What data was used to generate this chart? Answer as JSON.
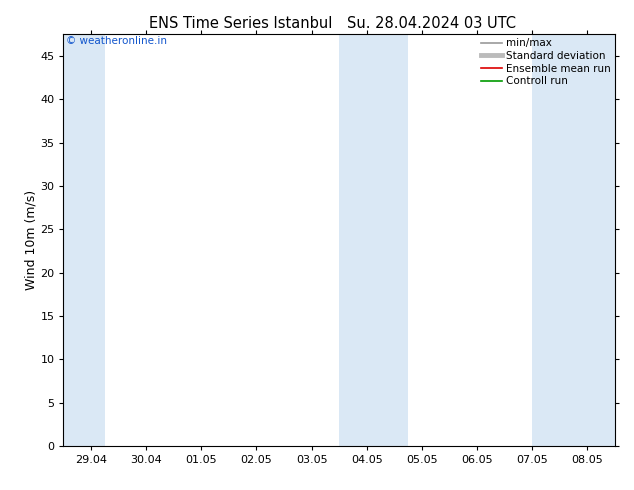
{
  "title_left": "ENS Time Series Istanbul",
  "title_right": "Su. 28.04.2024 03 UTC",
  "ylabel": "Wind 10m (m/s)",
  "ylim": [
    0,
    47.5
  ],
  "yticks": [
    0,
    5,
    10,
    15,
    20,
    25,
    30,
    35,
    40,
    45
  ],
  "x_tick_labels": [
    "29.04",
    "30.04",
    "01.05",
    "02.05",
    "03.05",
    "04.05",
    "05.05",
    "06.05",
    "07.05",
    "08.05"
  ],
  "x_tick_positions": [
    0.5,
    1.5,
    2.5,
    3.5,
    4.5,
    5.5,
    6.5,
    7.5,
    8.5,
    9.5
  ],
  "xlim": [
    0,
    10
  ],
  "shade_bands": [
    {
      "x_start": 0.0,
      "x_end": 0.75
    },
    {
      "x_start": 5.0,
      "x_end": 6.25
    },
    {
      "x_start": 8.5,
      "x_end": 10.0
    }
  ],
  "shade_color": "#dae8f5",
  "bg_color": "#ffffff",
  "legend_items": [
    {
      "label": "min/max",
      "color": "#999999",
      "lw": 1.2
    },
    {
      "label": "Standard deviation",
      "color": "#bbbbbb",
      "lw": 3.5
    },
    {
      "label": "Ensemble mean run",
      "color": "#dd0000",
      "lw": 1.2
    },
    {
      "label": "Controll run",
      "color": "#009900",
      "lw": 1.2
    }
  ],
  "watermark": "© weatheronline.in",
  "watermark_color": "#1155cc",
  "font_size_title": 10.5,
  "font_size_tick": 8,
  "font_size_ylabel": 9,
  "font_size_legend": 7.5,
  "font_size_watermark": 7.5
}
